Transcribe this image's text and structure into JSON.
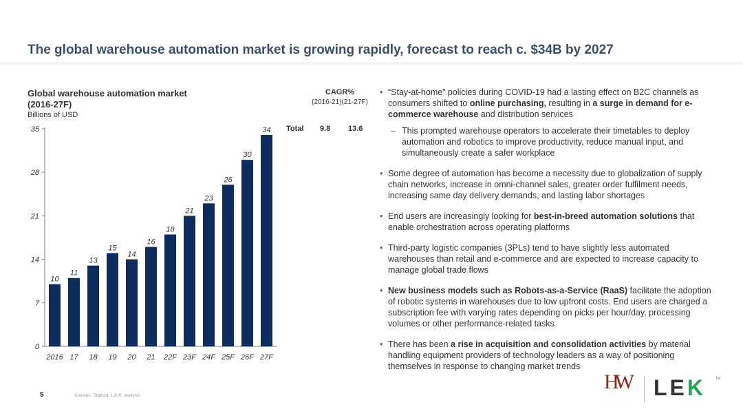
{
  "slide": {
    "title": "The global warehouse automation market is growing rapidly, forecast to reach c. $34B by 2027",
    "page_number": "5",
    "sources": "Sources: Statista; L.E.K. analysis"
  },
  "chart_header": {
    "title_line1": "Global warehouse automation market",
    "title_line2": "(2016-27F)",
    "unit": "Billions of USD"
  },
  "cagr": {
    "title": "CAGR%",
    "periods": "(2016-21)(21-27F)",
    "row_label": "Total",
    "value_1": "9.8",
    "value_2": "13.6"
  },
  "chart_data": {
    "type": "bar",
    "categories": [
      "2016",
      "17",
      "18",
      "19",
      "20",
      "21",
      "22F",
      "23F",
      "24F",
      "25F",
      "26F",
      "27F"
    ],
    "values": [
      10,
      11,
      13,
      15,
      14,
      16,
      18,
      21,
      23,
      26,
      30,
      34
    ],
    "title": "Global warehouse automation market (2016-27F)",
    "ylabel": "Billions of USD",
    "xlabel": "",
    "ylim": [
      0,
      35
    ],
    "yticks": [
      0,
      7,
      14,
      21,
      28,
      35
    ],
    "grid": false,
    "bar_color": "#0c2d5e"
  },
  "bullets": [
    {
      "level": 1,
      "parts": [
        {
          "t": "“Stay-at-home” policies during COVID-19 had a lasting effect on B2C channels as consumers shifted to ",
          "b": false
        },
        {
          "t": "online purchasing,",
          "b": true
        },
        {
          "t": " resulting in ",
          "b": false
        },
        {
          "t": "a surge in demand for e-commerce warehouse",
          "b": true
        },
        {
          "t": " and distribution services",
          "b": false
        }
      ]
    },
    {
      "level": 2,
      "parts": [
        {
          "t": "This prompted warehouse operators to accelerate their timetables to deploy automation and robotics to improve productivity, reduce manual input, and simultaneously create a safer workplace",
          "b": false
        }
      ]
    },
    {
      "level": 1,
      "parts": [
        {
          "t": "Some degree of automation has become a necessity due to globalization of supply chain networks, increase in omni-channel sales, greater order fulfilment needs, increasing same day delivery demands, and lasting labor shortages",
          "b": false
        }
      ]
    },
    {
      "level": 1,
      "parts": [
        {
          "t": "End users are increasingly looking for ",
          "b": false
        },
        {
          "t": "best-in-breed automation solutions",
          "b": true
        },
        {
          "t": " that enable orchestration across operating platforms",
          "b": false
        }
      ]
    },
    {
      "level": 1,
      "parts": [
        {
          "t": "Third-party logistic companies (3PLs) tend to have slightly less automated warehouses than retail and e-commerce and are expected to increase capacity to manage global trade flows",
          "b": false
        }
      ]
    },
    {
      "level": 1,
      "parts": [
        {
          "t": "New business models such as Robots-as-a-Service (RaaS)",
          "b": true
        },
        {
          "t": " facilitate the adoption of robotic systems in warehouses due to low upfront costs. End users are charged a subscription fee with varying rates depending on picks per hour/day, processing volumes or other performance-related tasks",
          "b": false
        }
      ]
    },
    {
      "level": 1,
      "parts": [
        {
          "t": "There has been ",
          "b": false
        },
        {
          "t": "a rise in acquisition and consolidation activities",
          "b": true
        },
        {
          "t": " by material handling equipment providers of technology leaders as a way of positioning themselves in response to changing market trends",
          "b": false
        }
      ]
    }
  ],
  "logos": {
    "hw": "HW",
    "lek_le": "LE",
    "lek_k": "K",
    "tm": "TM"
  }
}
